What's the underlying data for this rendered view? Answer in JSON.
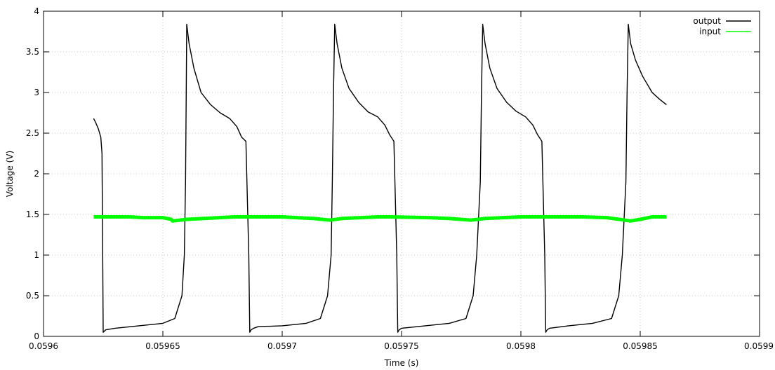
{
  "chart_data": {
    "type": "line",
    "title": "",
    "xlabel": "Time (s)",
    "ylabel": "Voltage (V)",
    "xlim": [
      0.0596,
      0.0599
    ],
    "ylim": [
      0,
      4
    ],
    "xticks": [
      0.0596,
      0.05965,
      0.0597,
      0.05975,
      0.0598,
      0.05985,
      0.0599
    ],
    "xtick_labels": [
      "0.0596",
      "0.05965",
      "0.0597",
      "0.05975",
      "0.0598",
      "0.05985",
      "0.0599"
    ],
    "yticks": [
      0,
      0.5,
      1,
      1.5,
      2,
      2.5,
      3,
      3.5,
      4
    ],
    "ytick_labels": [
      "0",
      "0.5",
      "1",
      "1.5",
      "2",
      "2.5",
      "3",
      "3.5",
      "4"
    ],
    "grid": true,
    "legend": "top-right",
    "series": [
      {
        "name": "output",
        "color": "#000000",
        "x": [
          0.059621,
          0.059622,
          0.059623,
          0.059624,
          0.0596245,
          0.0596248,
          0.059625,
          0.059626,
          0.05963,
          0.05964,
          0.05965,
          0.059655,
          0.059658,
          0.059659,
          0.0596595,
          0.0596598,
          0.05966,
          0.059661,
          0.059663,
          0.059666,
          0.05967,
          0.059674,
          0.059678,
          0.059681,
          0.059683,
          0.0596848,
          0.059686,
          0.0596864,
          0.059687,
          0.059688,
          0.05969,
          0.0597,
          0.05971,
          0.059716,
          0.059719,
          0.0597205,
          0.059721,
          0.0597215,
          0.059722,
          0.059723,
          0.059725,
          0.059728,
          0.059732,
          0.059736,
          0.05974,
          0.059743,
          0.059745,
          0.0597468,
          0.059748,
          0.0597484,
          0.059749,
          0.05975,
          0.05976,
          0.05977,
          0.059777,
          0.05978,
          0.0597815,
          0.059783,
          0.0597835,
          0.059784,
          0.059785,
          0.059787,
          0.05979,
          0.059794,
          0.059798,
          0.059802,
          0.059805,
          0.059807,
          0.0598088,
          0.05981,
          0.0598104,
          0.059811,
          0.059812,
          0.05982,
          0.05983,
          0.059838,
          0.059841,
          0.0598425,
          0.059844,
          0.0598445,
          0.059845,
          0.059846,
          0.059848,
          0.059851,
          0.059855,
          0.059858,
          0.059861
        ],
        "y": [
          2.68,
          2.62,
          2.55,
          2.45,
          2.25,
          1.0,
          0.05,
          0.08,
          0.1,
          0.13,
          0.16,
          0.22,
          0.5,
          1.0,
          1.9,
          3.0,
          3.84,
          3.6,
          3.3,
          3.0,
          2.85,
          2.75,
          2.68,
          2.58,
          2.45,
          2.4,
          1.0,
          0.05,
          0.08,
          0.1,
          0.12,
          0.13,
          0.16,
          0.22,
          0.5,
          1.0,
          1.9,
          3.0,
          3.84,
          3.6,
          3.3,
          3.05,
          2.88,
          2.76,
          2.7,
          2.6,
          2.48,
          2.4,
          1.0,
          0.05,
          0.08,
          0.1,
          0.13,
          0.16,
          0.22,
          0.5,
          1.0,
          1.9,
          3.0,
          3.84,
          3.6,
          3.3,
          3.05,
          2.88,
          2.77,
          2.7,
          2.6,
          2.48,
          2.4,
          1.0,
          0.05,
          0.08,
          0.1,
          0.13,
          0.16,
          0.22,
          0.5,
          1.0,
          1.9,
          3.0,
          3.84,
          3.6,
          3.4,
          3.2,
          3.0,
          2.92,
          2.85
        ]
      },
      {
        "name": "input",
        "color": "#00ff00",
        "x": [
          0.059621,
          0.059632,
          0.059636,
          0.059642,
          0.05965,
          0.0596535,
          0.059654,
          0.05966,
          0.05968,
          0.0597,
          0.059706,
          0.059713,
          0.05972,
          0.059725,
          0.05974,
          0.059745,
          0.059762,
          0.05977,
          0.059779,
          0.059785,
          0.0598,
          0.05981,
          0.05982,
          0.059826,
          0.059836,
          0.059846,
          0.05985,
          0.059855,
          0.059861
        ],
        "y": [
          1.47,
          1.47,
          1.47,
          1.46,
          1.46,
          1.44,
          1.42,
          1.44,
          1.47,
          1.47,
          1.46,
          1.45,
          1.43,
          1.45,
          1.47,
          1.47,
          1.46,
          1.45,
          1.43,
          1.45,
          1.47,
          1.47,
          1.47,
          1.47,
          1.46,
          1.42,
          1.44,
          1.47,
          1.47
        ]
      }
    ]
  }
}
